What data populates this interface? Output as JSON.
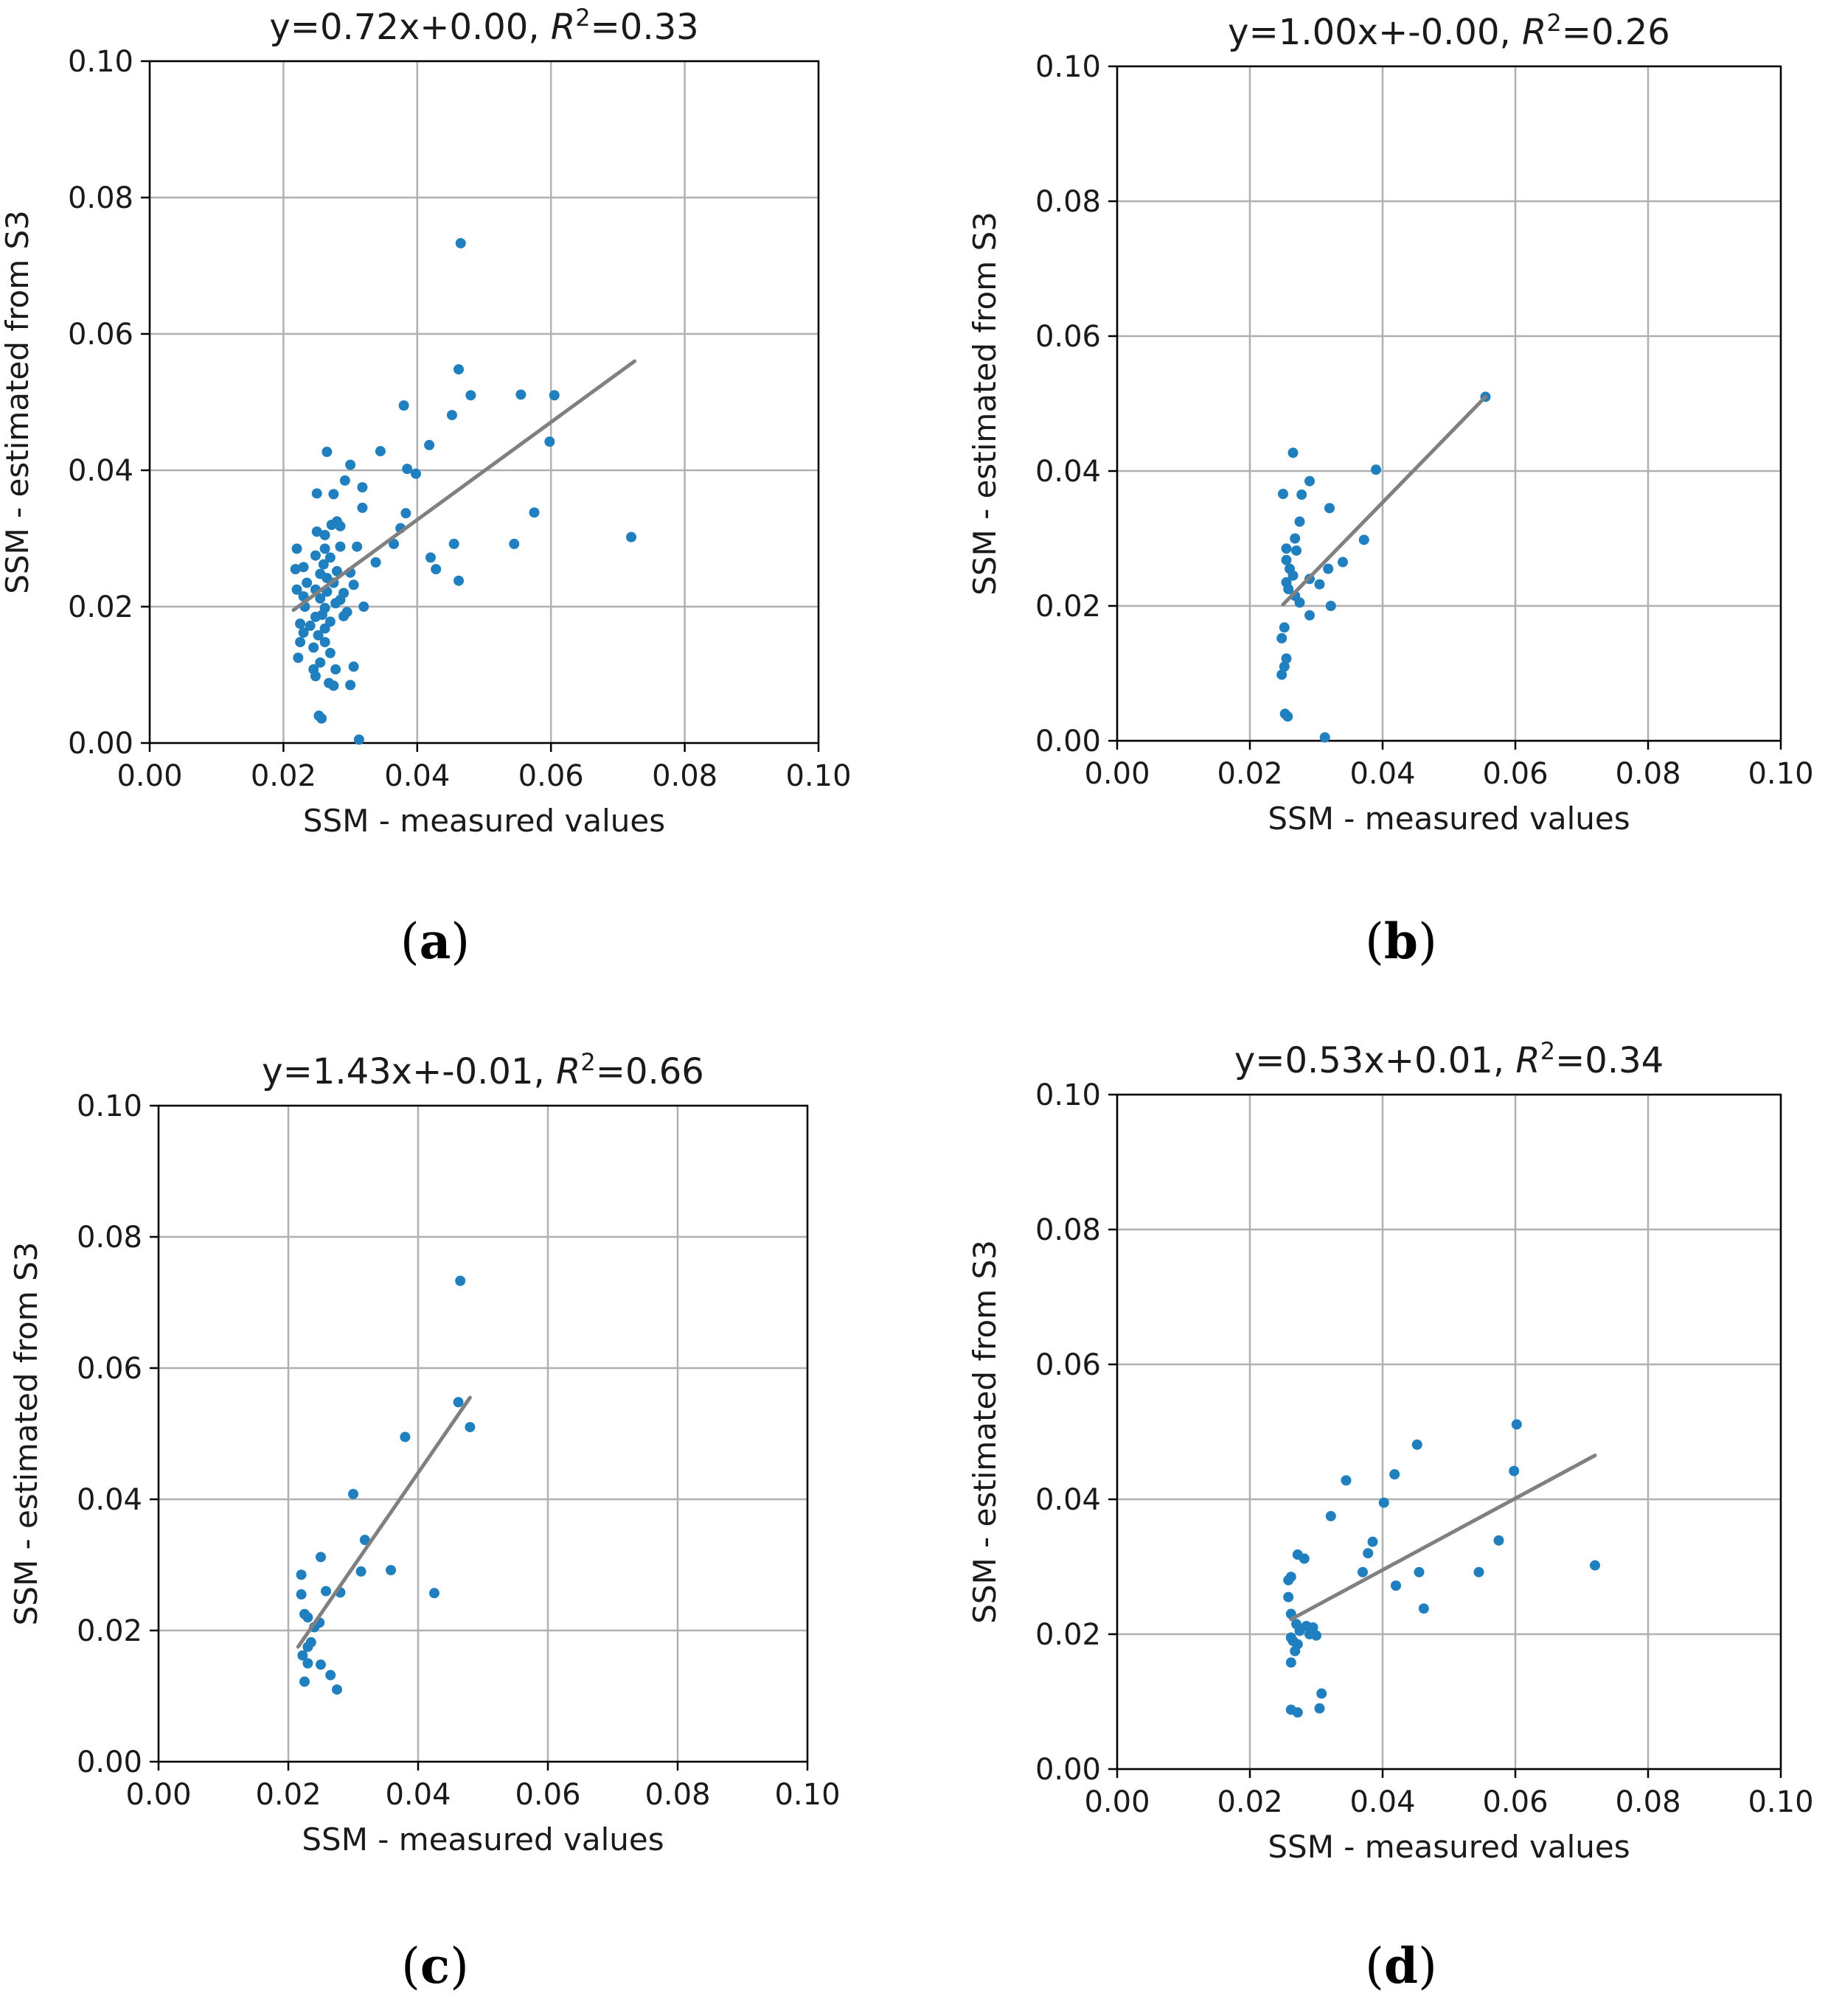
{
  "colors": {
    "point": "#1f7fbf",
    "fit_line": "#808080",
    "grid": "#b0b0b0"
  },
  "chart_data": [
    {
      "panel": "a",
      "type": "scatter",
      "title_prefix": "y=0.72x+0.00, ",
      "title_r": "R",
      "title_sup": "2",
      "title_suffix": "=0.33",
      "xlabel": "SSM - measured values",
      "ylabel": "SSM - estimated from S3",
      "xlim": [
        0,
        0.1
      ],
      "ylim": [
        0,
        0.1
      ],
      "xticks": [
        "0.00",
        "0.02",
        "0.04",
        "0.06",
        "0.08",
        "0.10"
      ],
      "yticks": [
        "0.00",
        "0.02",
        "0.04",
        "0.06",
        "0.08",
        "0.10"
      ],
      "grid": true,
      "fit_line": {
        "x": [
          0.0215,
          0.0725
        ],
        "y": [
          0.0195,
          0.056
        ]
      },
      "points": [
        [
          0.0465,
          0.0733
        ],
        [
          0.0462,
          0.0548
        ],
        [
          0.048,
          0.051
        ],
        [
          0.0555,
          0.0511
        ],
        [
          0.0605,
          0.051
        ],
        [
          0.038,
          0.0495
        ],
        [
          0.0452,
          0.0481
        ],
        [
          0.0598,
          0.0442
        ],
        [
          0.0418,
          0.0437
        ],
        [
          0.0345,
          0.0428
        ],
        [
          0.0265,
          0.0427
        ],
        [
          0.03,
          0.0408
        ],
        [
          0.0385,
          0.0402
        ],
        [
          0.0398,
          0.0395
        ],
        [
          0.0292,
          0.0385
        ],
        [
          0.025,
          0.0366
        ],
        [
          0.0275,
          0.0365
        ],
        [
          0.0318,
          0.0375
        ],
        [
          0.0575,
          0.0338
        ],
        [
          0.0383,
          0.0337
        ],
        [
          0.0318,
          0.0345
        ],
        [
          0.028,
          0.0325
        ],
        [
          0.0272,
          0.032
        ],
        [
          0.0285,
          0.0318
        ],
        [
          0.0375,
          0.0315
        ],
        [
          0.025,
          0.031
        ],
        [
          0.0262,
          0.0305
        ],
        [
          0.0545,
          0.0292
        ],
        [
          0.0455,
          0.0292
        ],
        [
          0.0365,
          0.0292
        ],
        [
          0.072,
          0.0302
        ],
        [
          0.022,
          0.0285
        ],
        [
          0.0262,
          0.0285
        ],
        [
          0.0285,
          0.0288
        ],
        [
          0.031,
          0.0288
        ],
        [
          0.0248,
          0.0275
        ],
        [
          0.027,
          0.0272
        ],
        [
          0.042,
          0.0272
        ],
        [
          0.0338,
          0.0265
        ],
        [
          0.026,
          0.0262
        ],
        [
          0.023,
          0.0258
        ],
        [
          0.0428,
          0.0255
        ],
        [
          0.0218,
          0.0255
        ],
        [
          0.028,
          0.0252
        ],
        [
          0.03,
          0.025
        ],
        [
          0.0255,
          0.0248
        ],
        [
          0.0462,
          0.0238
        ],
        [
          0.0265,
          0.0242
        ],
        [
          0.0235,
          0.0235
        ],
        [
          0.0275,
          0.0235
        ],
        [
          0.0305,
          0.0232
        ],
        [
          0.022,
          0.0225
        ],
        [
          0.0248,
          0.0225
        ],
        [
          0.0265,
          0.0222
        ],
        [
          0.029,
          0.022
        ],
        [
          0.023,
          0.0215
        ],
        [
          0.0255,
          0.0212
        ],
        [
          0.0285,
          0.021
        ],
        [
          0.0278,
          0.0205
        ],
        [
          0.032,
          0.02
        ],
        [
          0.0232,
          0.02
        ],
        [
          0.0262,
          0.0198
        ],
        [
          0.0295,
          0.0192
        ],
        [
          0.0258,
          0.0188
        ],
        [
          0.029,
          0.0186
        ],
        [
          0.0248,
          0.0185
        ],
        [
          0.0225,
          0.0175
        ],
        [
          0.027,
          0.0178
        ],
        [
          0.024,
          0.0172
        ],
        [
          0.0262,
          0.0168
        ],
        [
          0.023,
          0.0162
        ],
        [
          0.0252,
          0.0158
        ],
        [
          0.0225,
          0.0148
        ],
        [
          0.0262,
          0.0148
        ],
        [
          0.0245,
          0.014
        ],
        [
          0.027,
          0.0132
        ],
        [
          0.0222,
          0.0125
        ],
        [
          0.0255,
          0.0118
        ],
        [
          0.0305,
          0.0112
        ],
        [
          0.0245,
          0.0108
        ],
        [
          0.0278,
          0.0108
        ],
        [
          0.0248,
          0.0098
        ],
        [
          0.0268,
          0.0088
        ],
        [
          0.0275,
          0.0084
        ],
        [
          0.03,
          0.0085
        ],
        [
          0.0253,
          0.004
        ],
        [
          0.0257,
          0.0036
        ],
        [
          0.0313,
          0.0005
        ]
      ]
    },
    {
      "panel": "b",
      "type": "scatter",
      "title_prefix": "y=1.00x+-0.00, ",
      "title_r": "R",
      "title_sup": "2",
      "title_suffix": "=0.26",
      "xlabel": "SSM - measured values",
      "ylabel": "SSM - estimated from S3",
      "xlim": [
        0,
        0.1
      ],
      "ylim": [
        0,
        0.1
      ],
      "xticks": [
        "0.00",
        "0.02",
        "0.04",
        "0.06",
        "0.08",
        "0.10"
      ],
      "yticks": [
        "0.00",
        "0.02",
        "0.04",
        "0.06",
        "0.08",
        "0.10"
      ],
      "grid": true,
      "fit_line": {
        "x": [
          0.025,
          0.0555
        ],
        "y": [
          0.0202,
          0.051
        ]
      },
      "points": [
        [
          0.0555,
          0.051
        ],
        [
          0.0265,
          0.0427
        ],
        [
          0.039,
          0.0402
        ],
        [
          0.029,
          0.0385
        ],
        [
          0.025,
          0.0366
        ],
        [
          0.0278,
          0.0365
        ],
        [
          0.032,
          0.0345
        ],
        [
          0.0275,
          0.0325
        ],
        [
          0.0268,
          0.03
        ],
        [
          0.0372,
          0.0298
        ],
        [
          0.0255,
          0.0285
        ],
        [
          0.027,
          0.0282
        ],
        [
          0.0255,
          0.0268
        ],
        [
          0.034,
          0.0265
        ],
        [
          0.026,
          0.0255
        ],
        [
          0.0318,
          0.0255
        ],
        [
          0.0265,
          0.0245
        ],
        [
          0.029,
          0.024
        ],
        [
          0.0255,
          0.0235
        ],
        [
          0.0305,
          0.0232
        ],
        [
          0.0258,
          0.0225
        ],
        [
          0.0268,
          0.0215
        ],
        [
          0.0275,
          0.0205
        ],
        [
          0.0322,
          0.02
        ],
        [
          0.029,
          0.0186
        ],
        [
          0.0252,
          0.0168
        ],
        [
          0.0248,
          0.0152
        ],
        [
          0.0255,
          0.0122
        ],
        [
          0.0252,
          0.011
        ],
        [
          0.0248,
          0.0098
        ],
        [
          0.0253,
          0.004
        ],
        [
          0.0257,
          0.0036
        ],
        [
          0.0313,
          0.0005
        ]
      ]
    },
    {
      "panel": "c",
      "type": "scatter",
      "title_prefix": "y=1.43x+-0.01, ",
      "title_r": "R",
      "title_sup": "2",
      "title_suffix": "=0.66",
      "xlabel": "SSM - measured values",
      "ylabel": "SSM - estimated from S3",
      "xlim": [
        0,
        0.1
      ],
      "ylim": [
        0,
        0.1
      ],
      "xticks": [
        "0.00",
        "0.02",
        "0.04",
        "0.06",
        "0.08",
        "0.10"
      ],
      "yticks": [
        "0.00",
        "0.02",
        "0.04",
        "0.06",
        "0.08",
        "0.10"
      ],
      "grid": true,
      "fit_line": {
        "x": [
          0.0215,
          0.048
        ],
        "y": [
          0.0175,
          0.0555
        ]
      },
      "points": [
        [
          0.0465,
          0.0733
        ],
        [
          0.0462,
          0.0548
        ],
        [
          0.048,
          0.051
        ],
        [
          0.038,
          0.0495
        ],
        [
          0.03,
          0.0408
        ],
        [
          0.0318,
          0.0338
        ],
        [
          0.025,
          0.0312
        ],
        [
          0.0312,
          0.029
        ],
        [
          0.0358,
          0.0292
        ],
        [
          0.022,
          0.0285
        ],
        [
          0.0258,
          0.026
        ],
        [
          0.028,
          0.0258
        ],
        [
          0.0425,
          0.0257
        ],
        [
          0.022,
          0.0255
        ],
        [
          0.0225,
          0.0225
        ],
        [
          0.023,
          0.022
        ],
        [
          0.0248,
          0.0212
        ],
        [
          0.024,
          0.0205
        ],
        [
          0.0235,
          0.0182
        ],
        [
          0.023,
          0.0175
        ],
        [
          0.0222,
          0.0162
        ],
        [
          0.023,
          0.015
        ],
        [
          0.025,
          0.0148
        ],
        [
          0.0265,
          0.0132
        ],
        [
          0.0225,
          0.0122
        ],
        [
          0.0275,
          0.011
        ]
      ]
    },
    {
      "panel": "d",
      "type": "scatter",
      "title_prefix": "y=0.53x+0.01, ",
      "title_r": "R",
      "title_sup": "2",
      "title_suffix": "=0.34",
      "xlabel": "SSM - measured values",
      "ylabel": "SSM - estimated from S3",
      "xlim": [
        0,
        0.1
      ],
      "ylim": [
        0,
        0.1
      ],
      "xticks": [
        "0.00",
        "0.02",
        "0.04",
        "0.06",
        "0.08",
        "0.10"
      ],
      "yticks": [
        "0.00",
        "0.02",
        "0.04",
        "0.06",
        "0.08",
        "0.10"
      ],
      "grid": true,
      "fit_line": {
        "x": [
          0.0262,
          0.072
        ],
        "y": [
          0.0222,
          0.0465
        ]
      },
      "points": [
        [
          0.0602,
          0.0511
        ],
        [
          0.0452,
          0.0481
        ],
        [
          0.0598,
          0.0442
        ],
        [
          0.0418,
          0.0437
        ],
        [
          0.0345,
          0.0428
        ],
        [
          0.0402,
          0.0395
        ],
        [
          0.0322,
          0.0375
        ],
        [
          0.0575,
          0.0339
        ],
        [
          0.0385,
          0.0337
        ],
        [
          0.0378,
          0.032
        ],
        [
          0.0272,
          0.0318
        ],
        [
          0.0282,
          0.0312
        ],
        [
          0.072,
          0.0302
        ],
        [
          0.0545,
          0.0292
        ],
        [
          0.0455,
          0.0292
        ],
        [
          0.037,
          0.0292
        ],
        [
          0.0262,
          0.0285
        ],
        [
          0.0258,
          0.028
        ],
        [
          0.042,
          0.0272
        ],
        [
          0.0258,
          0.0255
        ],
        [
          0.0462,
          0.0238
        ],
        [
          0.0262,
          0.023
        ],
        [
          0.027,
          0.0215
        ],
        [
          0.0285,
          0.0212
        ],
        [
          0.0295,
          0.021
        ],
        [
          0.0275,
          0.0205
        ],
        [
          0.029,
          0.02
        ],
        [
          0.0262,
          0.0195
        ],
        [
          0.03,
          0.0198
        ],
        [
          0.0265,
          0.019
        ],
        [
          0.0272,
          0.0185
        ],
        [
          0.0268,
          0.0175
        ],
        [
          0.0262,
          0.0158
        ],
        [
          0.0308,
          0.0112
        ],
        [
          0.0305,
          0.009
        ],
        [
          0.0262,
          0.0088
        ],
        [
          0.0272,
          0.0084
        ]
      ]
    }
  ],
  "panel_labels": [
    {
      "open": "(",
      "letter": "a",
      "close": ")"
    },
    {
      "open": "(",
      "letter": "b",
      "close": ")"
    },
    {
      "open": "(",
      "letter": "c",
      "close": ")"
    },
    {
      "open": "(",
      "letter": "d",
      "close": ")"
    }
  ]
}
